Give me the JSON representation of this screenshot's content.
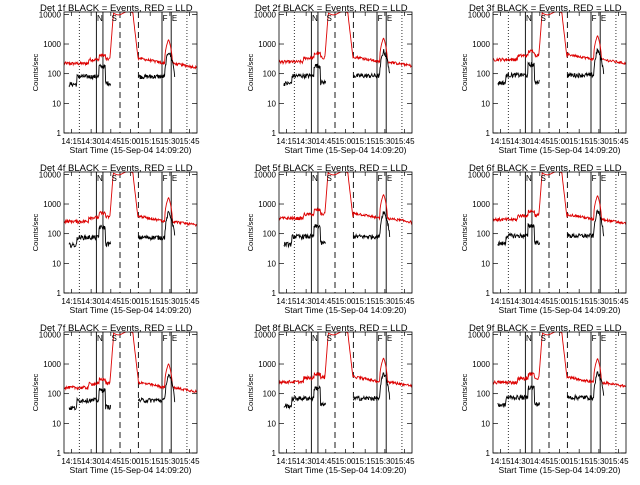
{
  "figure": {
    "x_axis_label": "Start Time (15-Sep-04 14:09:20)",
    "y_axis_label": "Counts/sec",
    "series_colors": {
      "events": "#000000",
      "lld": "#dd0000"
    }
  },
  "chart_data": [
    {
      "type": "line",
      "title": "Det 1f  BLACK = Events, RED = LLD",
      "x_ticks": [
        "14:15",
        "14:30",
        "14:45",
        "15:00",
        "15:15",
        "15:30",
        "15:45"
      ],
      "y_ticks": [
        "1",
        "10",
        "100",
        "1000",
        "10000"
      ],
      "y_scale": "log",
      "ylim": [
        1,
        12000
      ],
      "xlim_minutes": [
        "14:09:20",
        "15:50:40"
      ],
      "dotted_lines": [
        "14:21",
        "15:43"
      ],
      "solid_lines": [
        "14:34",
        "14:39",
        "15:24",
        "15:31"
      ],
      "dashed_lines": [
        "14:52",
        "15:06"
      ],
      "markers": [
        {
          "time": "14:36",
          "label": "N"
        },
        {
          "time": "14:47",
          "label": "S"
        },
        {
          "time": "15:26",
          "label": "F"
        },
        {
          "time": "15:33",
          "label": "E"
        }
      ],
      "lld_baseline": 220,
      "events_level": 80
    },
    {
      "type": "line",
      "title": "Det 2f  BLACK = Events, RED = LLD",
      "x_ticks": [
        "14:15",
        "14:30",
        "14:45",
        "15:00",
        "15:15",
        "15:30",
        "15:45"
      ],
      "y_ticks": [
        "1",
        "10",
        "100",
        "1000",
        "10000"
      ],
      "y_scale": "log",
      "ylim": [
        1,
        12000
      ],
      "xlim_minutes": [
        "14:09:20",
        "15:50:40"
      ],
      "dotted_lines": [
        "14:21",
        "15:43"
      ],
      "solid_lines": [
        "14:34",
        "14:39",
        "15:24",
        "15:31"
      ],
      "dashed_lines": [
        "14:52",
        "15:06"
      ],
      "markers": [
        {
          "time": "14:36",
          "label": "N"
        },
        {
          "time": "14:47",
          "label": "S"
        },
        {
          "time": "15:26",
          "label": "F"
        },
        {
          "time": "15:33",
          "label": "E"
        }
      ],
      "lld_baseline": 250,
      "events_level": 85
    },
    {
      "type": "line",
      "title": "Det 3f  BLACK = Events, RED = LLD",
      "x_ticks": [
        "14:15",
        "14:30",
        "14:45",
        "15:00",
        "15:15",
        "15:30",
        "15:45"
      ],
      "y_ticks": [
        "1",
        "10",
        "100",
        "1000",
        "10000"
      ],
      "y_scale": "log",
      "ylim": [
        1,
        12000
      ],
      "xlim_minutes": [
        "14:09:20",
        "15:50:40"
      ],
      "dotted_lines": [
        "14:21",
        "15:43"
      ],
      "solid_lines": [
        "14:34",
        "14:39",
        "15:24",
        "15:31"
      ],
      "dashed_lines": [
        "14:52",
        "15:06"
      ],
      "markers": [
        {
          "time": "14:36",
          "label": "N"
        },
        {
          "time": "14:47",
          "label": "S"
        },
        {
          "time": "15:26",
          "label": "F"
        },
        {
          "time": "15:33",
          "label": "E"
        }
      ],
      "lld_baseline": 300,
      "events_level": 90
    },
    {
      "type": "line",
      "title": "Det 4f  BLACK = Events, RED = LLD",
      "x_ticks": [
        "14:15",
        "14:30",
        "14:45",
        "15:00",
        "15:15",
        "15:30",
        "15:45"
      ],
      "y_ticks": [
        "1",
        "10",
        "100",
        "1000",
        "10000"
      ],
      "y_scale": "log",
      "ylim": [
        1,
        12000
      ],
      "xlim_minutes": [
        "14:09:20",
        "15:50:40"
      ],
      "dotted_lines": [
        "14:21",
        "15:43"
      ],
      "solid_lines": [
        "14:34",
        "14:39",
        "15:24",
        "15:31"
      ],
      "dashed_lines": [
        "14:52",
        "15:06"
      ],
      "markers": [
        {
          "time": "14:36",
          "label": "N"
        },
        {
          "time": "14:47",
          "label": "S"
        },
        {
          "time": "15:26",
          "label": "F"
        },
        {
          "time": "15:33",
          "label": "E"
        }
      ],
      "lld_baseline": 260,
      "events_level": 75
    },
    {
      "type": "line",
      "title": "Det 5f  BLACK = Events, RED = LLD",
      "x_ticks": [
        "14:15",
        "14:30",
        "14:45",
        "15:00",
        "15:15",
        "15:30",
        "15:45"
      ],
      "y_ticks": [
        "1",
        "10",
        "100",
        "1000",
        "10000"
      ],
      "y_scale": "log",
      "ylim": [
        1,
        12000
      ],
      "xlim_minutes": [
        "14:09:20",
        "15:50:40"
      ],
      "dotted_lines": [
        "14:21",
        "15:43"
      ],
      "solid_lines": [
        "14:34",
        "14:39",
        "15:24",
        "15:31"
      ],
      "dashed_lines": [
        "14:52",
        "15:06"
      ],
      "markers": [
        {
          "time": "14:36",
          "label": "N"
        },
        {
          "time": "14:47",
          "label": "S"
        },
        {
          "time": "15:26",
          "label": "F"
        },
        {
          "time": "15:33",
          "label": "E"
        }
      ],
      "lld_baseline": 330,
      "events_level": 80
    },
    {
      "type": "line",
      "title": "Det 6f  BLACK = Events, RED = LLD",
      "x_ticks": [
        "14:15",
        "14:30",
        "14:45",
        "15:00",
        "15:15",
        "15:30",
        "15:45"
      ],
      "y_ticks": [
        "1",
        "10",
        "100",
        "1000",
        "10000"
      ],
      "y_scale": "log",
      "ylim": [
        1,
        12000
      ],
      "xlim_minutes": [
        "14:09:20",
        "15:50:40"
      ],
      "dotted_lines": [
        "14:21",
        "15:43"
      ],
      "solid_lines": [
        "14:34",
        "14:39",
        "15:24",
        "15:31"
      ],
      "dashed_lines": [
        "14:52",
        "15:06"
      ],
      "markers": [
        {
          "time": "14:36",
          "label": "N"
        },
        {
          "time": "14:47",
          "label": "S"
        },
        {
          "time": "15:26",
          "label": "F"
        },
        {
          "time": "15:33",
          "label": "E"
        }
      ],
      "lld_baseline": 300,
      "events_level": 85
    },
    {
      "type": "line",
      "title": "Det 7f  BLACK = Events, RED = LLD",
      "x_ticks": [
        "14:15",
        "14:30",
        "14:45",
        "15:00",
        "15:15",
        "15:30",
        "15:45"
      ],
      "y_ticks": [
        "1",
        "10",
        "100",
        "1000",
        "10000"
      ],
      "y_scale": "log",
      "ylim": [
        1,
        12000
      ],
      "xlim_minutes": [
        "14:09:20",
        "15:50:40"
      ],
      "dotted_lines": [
        "14:21",
        "15:43"
      ],
      "solid_lines": [
        "14:34",
        "14:39",
        "15:24",
        "15:31"
      ],
      "dashed_lines": [
        "14:52",
        "15:06"
      ],
      "markers": [
        {
          "time": "14:36",
          "label": "N"
        },
        {
          "time": "14:47",
          "label": "S"
        },
        {
          "time": "15:26",
          "label": "F"
        },
        {
          "time": "15:33",
          "label": "E"
        }
      ],
      "lld_baseline": 160,
      "events_level": 60
    },
    {
      "type": "line",
      "title": "Det 8f  BLACK = Events, RED = LLD",
      "x_ticks": [
        "14:15",
        "14:30",
        "14:45",
        "15:00",
        "15:15",
        "15:30",
        "15:45"
      ],
      "y_ticks": [
        "1",
        "10",
        "100",
        "1000",
        "10000"
      ],
      "y_scale": "log",
      "ylim": [
        1,
        12000
      ],
      "xlim_minutes": [
        "14:09:20",
        "15:50:40"
      ],
      "dotted_lines": [
        "14:21",
        "15:43"
      ],
      "solid_lines": [
        "14:34",
        "14:39",
        "15:24",
        "15:31"
      ],
      "dashed_lines": [
        "14:52",
        "15:06"
      ],
      "markers": [
        {
          "time": "14:36",
          "label": "N"
        },
        {
          "time": "14:47",
          "label": "S"
        },
        {
          "time": "15:26",
          "label": "F"
        },
        {
          "time": "15:33",
          "label": "E"
        }
      ],
      "lld_baseline": 250,
      "events_level": 70
    },
    {
      "type": "line",
      "title": "Det 9f  BLACK = Events, RED = LLD",
      "x_ticks": [
        "14:15",
        "14:30",
        "14:45",
        "15:00",
        "15:15",
        "15:30",
        "15:45"
      ],
      "y_ticks": [
        "1",
        "10",
        "100",
        "1000",
        "10000"
      ],
      "y_scale": "log",
      "ylim": [
        1,
        12000
      ],
      "xlim_minutes": [
        "14:09:20",
        "15:50:40"
      ],
      "dotted_lines": [
        "14:21",
        "15:43"
      ],
      "solid_lines": [
        "14:34",
        "14:39",
        "15:24",
        "15:31"
      ],
      "dashed_lines": [
        "14:52",
        "15:06"
      ],
      "markers": [
        {
          "time": "14:36",
          "label": "N"
        },
        {
          "time": "14:47",
          "label": "S"
        },
        {
          "time": "15:26",
          "label": "F"
        },
        {
          "time": "15:33",
          "label": "E"
        }
      ],
      "lld_baseline": 240,
      "events_level": 75
    }
  ]
}
